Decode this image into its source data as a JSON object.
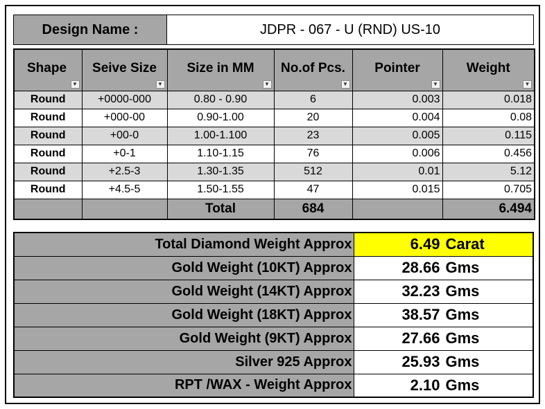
{
  "design": {
    "label": "Design Name :",
    "value": "JDPR - 067 - U (RND) US-10"
  },
  "headers": [
    "Shape",
    "Seive Size",
    "Size in MM",
    "No.of Pcs.",
    "Pointer",
    "Weight"
  ],
  "rows": [
    {
      "shape": "Round",
      "seive": "+0000-000",
      "mm": "0.80 - 0.90",
      "pcs": "6",
      "pointer": "0.003",
      "weight": "0.018"
    },
    {
      "shape": "Round",
      "seive": "+000-00",
      "mm": "0.90-1.00",
      "pcs": "20",
      "pointer": "0.004",
      "weight": "0.08"
    },
    {
      "shape": "Round",
      "seive": "+00-0",
      "mm": "1.00-1.100",
      "pcs": "23",
      "pointer": "0.005",
      "weight": "0.115"
    },
    {
      "shape": "Round",
      "seive": "+0-1",
      "mm": "1.10-1.15",
      "pcs": "76",
      "pointer": "0.006",
      "weight": "0.456"
    },
    {
      "shape": "Round",
      "seive": "+2.5-3",
      "mm": "1.30-1.35",
      "pcs": "512",
      "pointer": "0.01",
      "weight": "5.12"
    },
    {
      "shape": "Round",
      "seive": "+4.5-5",
      "mm": "1.50-1.55",
      "pcs": "47",
      "pointer": "0.015",
      "weight": "0.705"
    }
  ],
  "total": {
    "label": "Total",
    "pcs": "684",
    "weight": "6.494"
  },
  "summary": [
    {
      "label": "Total Diamond Weight Approx",
      "value": "6.49",
      "unit": "Carat"
    },
    {
      "label": "Gold Weight (10KT) Approx",
      "value": "28.66",
      "unit": "Gms"
    },
    {
      "label": "Gold Weight (14KT) Approx",
      "value": "32.23",
      "unit": "Gms"
    },
    {
      "label": "Gold Weight (18KT) Approx",
      "value": "38.57",
      "unit": "Gms"
    },
    {
      "label": "Gold Weight (9KT) Approx",
      "value": "27.66",
      "unit": "Gms"
    },
    {
      "label": "Silver 925 Approx",
      "value": "25.93",
      "unit": "Gms"
    },
    {
      "label": "RPT /WAX - Weight Approx",
      "value": "2.10",
      "unit": "Gms"
    }
  ],
  "colors": {
    "header_gray": "#a6a6a6",
    "row_gray": "#d9d9d9",
    "highlight": "#ffff00"
  },
  "icons": {
    "filter_dropdown": "dropdown-arrow-icon",
    "filter_active": "filter-icon"
  }
}
